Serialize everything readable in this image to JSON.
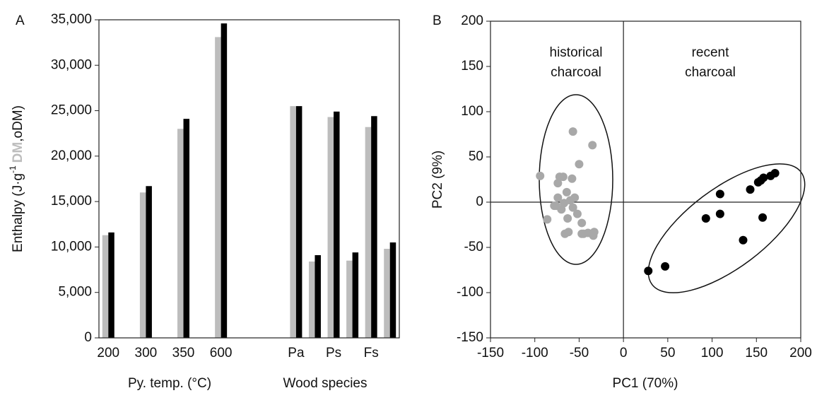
{
  "chart_data": [
    {
      "type": "bar",
      "panel": "A",
      "y_label": {
        "text": "Enthalpy (J·g",
        "superscript": "-1",
        "separator": ",",
        "close": ")"
      },
      "groups": [
        "Py. temp. (°C)",
        "Wood species"
      ],
      "categories": [
        "200",
        null,
        "300",
        null,
        "350",
        null,
        "600",
        null,
        null,
        null,
        "Pa",
        null,
        "Ps",
        null,
        "Fs",
        null
      ],
      "series": [
        {
          "name": "DM",
          "color": "#bdbdbd",
          "values": [
            11300,
            null,
            16000,
            null,
            23000,
            null,
            33100,
            null,
            null,
            null,
            25500,
            8400,
            24300,
            8500,
            23200,
            9800
          ]
        },
        {
          "name": "oDM",
          "color": "#000000",
          "values": [
            11600,
            null,
            16700,
            null,
            24100,
            null,
            34600,
            null,
            null,
            null,
            25500,
            9100,
            24900,
            9400,
            24400,
            10500
          ]
        }
      ],
      "ylim": [
        0,
        35000
      ],
      "yticks": [
        0,
        {
          "value": 5000,
          "label": "5,000"
        },
        {
          "value": 10000,
          "label": "10,000"
        },
        {
          "value": 15000,
          "label": "15,000"
        },
        {
          "value": 20000,
          "label": "20,000"
        },
        {
          "value": 25000,
          "label": "25,000"
        },
        {
          "value": 30000,
          "label": "30,000"
        },
        {
          "value": 35000,
          "label": "35,000"
        }
      ]
    },
    {
      "type": "scatter",
      "panel": "B",
      "x_label": "PC1 (70%)",
      "y_label": "PC2 (9%)",
      "annotations": [
        [
          "historical",
          "charcoal"
        ],
        [
          "recent",
          "charcoal"
        ]
      ],
      "xlim": [
        -150,
        200
      ],
      "xticks": [
        -150,
        -100,
        -50,
        0,
        50,
        100,
        150,
        200
      ],
      "ylim": [
        -150,
        200
      ],
      "yticks": [
        -150,
        -100,
        -50,
        0,
        50,
        100,
        150,
        200
      ],
      "zero_lines": true,
      "series": [
        {
          "color": "#a8a8a8",
          "x": [
            -57,
            -35,
            -50,
            -94,
            -72,
            -68,
            -58,
            -74,
            -64,
            -74,
            -55,
            -60,
            -78,
            -67,
            -52,
            -70,
            -63,
            -86,
            -47,
            -62,
            -66,
            -47,
            -40,
            -33,
            -34,
            -45,
            -76,
            -57
          ],
          "values": [
            78,
            63,
            42,
            29,
            28,
            28,
            26,
            21,
            11,
            5,
            5,
            2,
            -4,
            -1,
            -13,
            -8,
            -18,
            -19,
            -23,
            -33,
            -35,
            -35,
            -34,
            -33,
            -37,
            -35,
            -4,
            -6
          ]
        },
        {
          "color": "#000000",
          "x": [
            28,
            47,
            93,
            109,
            109,
            135,
            143,
            152,
            158,
            157,
            166,
            171,
            155
          ],
          "values": [
            -76,
            -71,
            -18,
            -13,
            9,
            -42,
            14,
            22,
            27,
            -17,
            29,
            32,
            24
          ]
        }
      ]
    }
  ]
}
